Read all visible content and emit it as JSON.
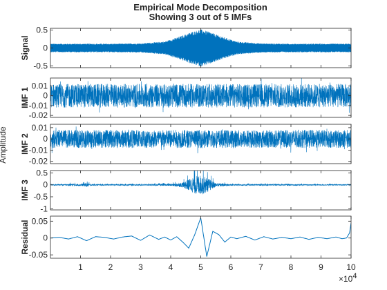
{
  "chart_data": {
    "type": "line",
    "title": [
      "Empirical Mode Decomposition",
      "Showing 3 out of 5 IMFs"
    ],
    "shared_ylabel": "Amplitude",
    "x_multiplier_label": "×10",
    "x_multiplier_exponent": "4",
    "xlim": [
      0,
      100000
    ],
    "xticks": [
      10000,
      20000,
      30000,
      40000,
      50000,
      60000,
      70000,
      80000,
      90000,
      100000
    ],
    "xtick_labels": [
      "1",
      "2",
      "3",
      "4",
      "5",
      "6",
      "7",
      "8",
      "9",
      "10"
    ],
    "line_color": "#0072BD",
    "series": [
      {
        "name": "Signal",
        "ylim": [
          -0.55,
          0.55
        ],
        "yticks": [
          -0.5,
          0,
          0.5
        ],
        "ytick_labels": [
          "-0.5",
          "0",
          "0.5"
        ],
        "envelope": [
          [
            0,
            0.12
          ],
          [
            10000,
            0.12
          ],
          [
            20000,
            0.12
          ],
          [
            30000,
            0.13
          ],
          [
            38000,
            0.18
          ],
          [
            43000,
            0.32
          ],
          [
            47000,
            0.45
          ],
          [
            50000,
            0.52
          ],
          [
            53000,
            0.45
          ],
          [
            57000,
            0.32
          ],
          [
            62000,
            0.18
          ],
          [
            70000,
            0.13
          ],
          [
            80000,
            0.12
          ],
          [
            100000,
            0.12
          ]
        ]
      },
      {
        "name": "IMF 1",
        "ylim": [
          -0.022,
          0.018
        ],
        "yticks": [
          -0.02,
          -0.01,
          0,
          0.01
        ],
        "ytick_labels": [
          "-0.02",
          "-0.01",
          "0",
          "0.01"
        ],
        "envelope": [
          [
            0,
            0.012
          ],
          [
            100000,
            0.012
          ]
        ]
      },
      {
        "name": "IMF 2",
        "ylim": [
          -0.022,
          0.013
        ],
        "yticks": [
          -0.02,
          -0.01,
          0,
          0.01
        ],
        "ytick_labels": [
          "-0.02",
          "-0.01",
          "0",
          "0.01"
        ],
        "envelope": [
          [
            0,
            0.008
          ],
          [
            100000,
            0.008
          ]
        ]
      },
      {
        "name": "IMF 3",
        "ylim": [
          -1.05,
          0.6
        ],
        "yticks": [
          -1,
          -0.5,
          0,
          0.5
        ],
        "ytick_labels": [
          "-1",
          "-0.5",
          "0",
          "0.5"
        ],
        "envelope": [
          [
            0,
            0.03
          ],
          [
            5000,
            0.04
          ],
          [
            7000,
            0.08
          ],
          [
            10000,
            0.05
          ],
          [
            12000,
            0.12
          ],
          [
            14000,
            0.04
          ],
          [
            30000,
            0.04
          ],
          [
            40000,
            0.06
          ],
          [
            44000,
            0.15
          ],
          [
            47000,
            0.45
          ],
          [
            49000,
            0.6
          ],
          [
            51000,
            0.55
          ],
          [
            53000,
            0.35
          ],
          [
            55000,
            0.12
          ],
          [
            60000,
            0.05
          ],
          [
            100000,
            0.03
          ]
        ]
      },
      {
        "name": "Residual",
        "ylim": [
          -0.06,
          0.065
        ],
        "yticks": [
          -0.05,
          0,
          0.05
        ],
        "ytick_labels": [
          "-0.05",
          "0",
          "0.05"
        ],
        "wave": [
          [
            0,
            0
          ],
          [
            3000,
            0.002
          ],
          [
            6000,
            -0.003
          ],
          [
            9000,
            0.004
          ],
          [
            12000,
            -0.008
          ],
          [
            15000,
            0.004
          ],
          [
            18000,
            0.002
          ],
          [
            21000,
            -0.003
          ],
          [
            24000,
            0.003
          ],
          [
            27000,
            0.006
          ],
          [
            30000,
            -0.007
          ],
          [
            33000,
            0.009
          ],
          [
            36000,
            -0.004
          ],
          [
            38000,
            0.003
          ],
          [
            40000,
            -0.006
          ],
          [
            42000,
            0.004
          ],
          [
            44000,
            -0.012
          ],
          [
            46000,
            -0.03
          ],
          [
            48000,
            0.01
          ],
          [
            50000,
            0.06
          ],
          [
            52000,
            -0.055
          ],
          [
            54000,
            0.02
          ],
          [
            56000,
            0.01
          ],
          [
            58000,
            -0.012
          ],
          [
            60000,
            0.003
          ],
          [
            62000,
            -0.002
          ],
          [
            65000,
            0.005
          ],
          [
            68000,
            -0.006
          ],
          [
            71000,
            0.004
          ],
          [
            74000,
            -0.003
          ],
          [
            77000,
            0.002
          ],
          [
            80000,
            -0.002
          ],
          [
            83000,
            0.003
          ],
          [
            86000,
            -0.004
          ],
          [
            89000,
            0.002
          ],
          [
            92000,
            -0.002
          ],
          [
            95000,
            0.003
          ],
          [
            97000,
            -0.002
          ],
          [
            98500,
            0.0
          ],
          [
            99500,
            0.015
          ],
          [
            100000,
            0.045
          ]
        ]
      }
    ]
  }
}
